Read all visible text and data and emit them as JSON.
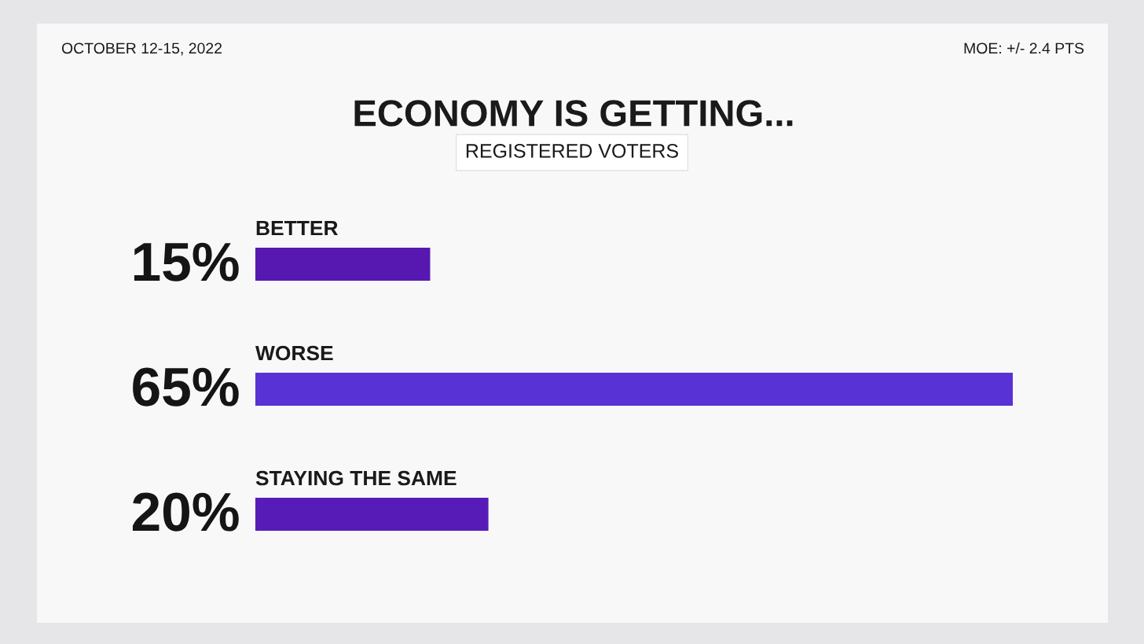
{
  "chart_data": {
    "type": "bar",
    "orientation": "horizontal",
    "title": "ECONOMY IS GETTING...",
    "subtitle": "REGISTERED VOTERS",
    "categories": [
      "BETTER",
      "WORSE",
      "STAYING THE SAME"
    ],
    "values": [
      15,
      65,
      20
    ],
    "colors": [
      "#5618b0",
      "#5832d4",
      "#571cb8"
    ],
    "value_labels": [
      "15%",
      "65%",
      "20%"
    ],
    "annotations": [
      "OCTOBER 12-15, 2022",
      "MOE: +/- 2.4 PTS"
    ],
    "tick_labels": false
  }
}
